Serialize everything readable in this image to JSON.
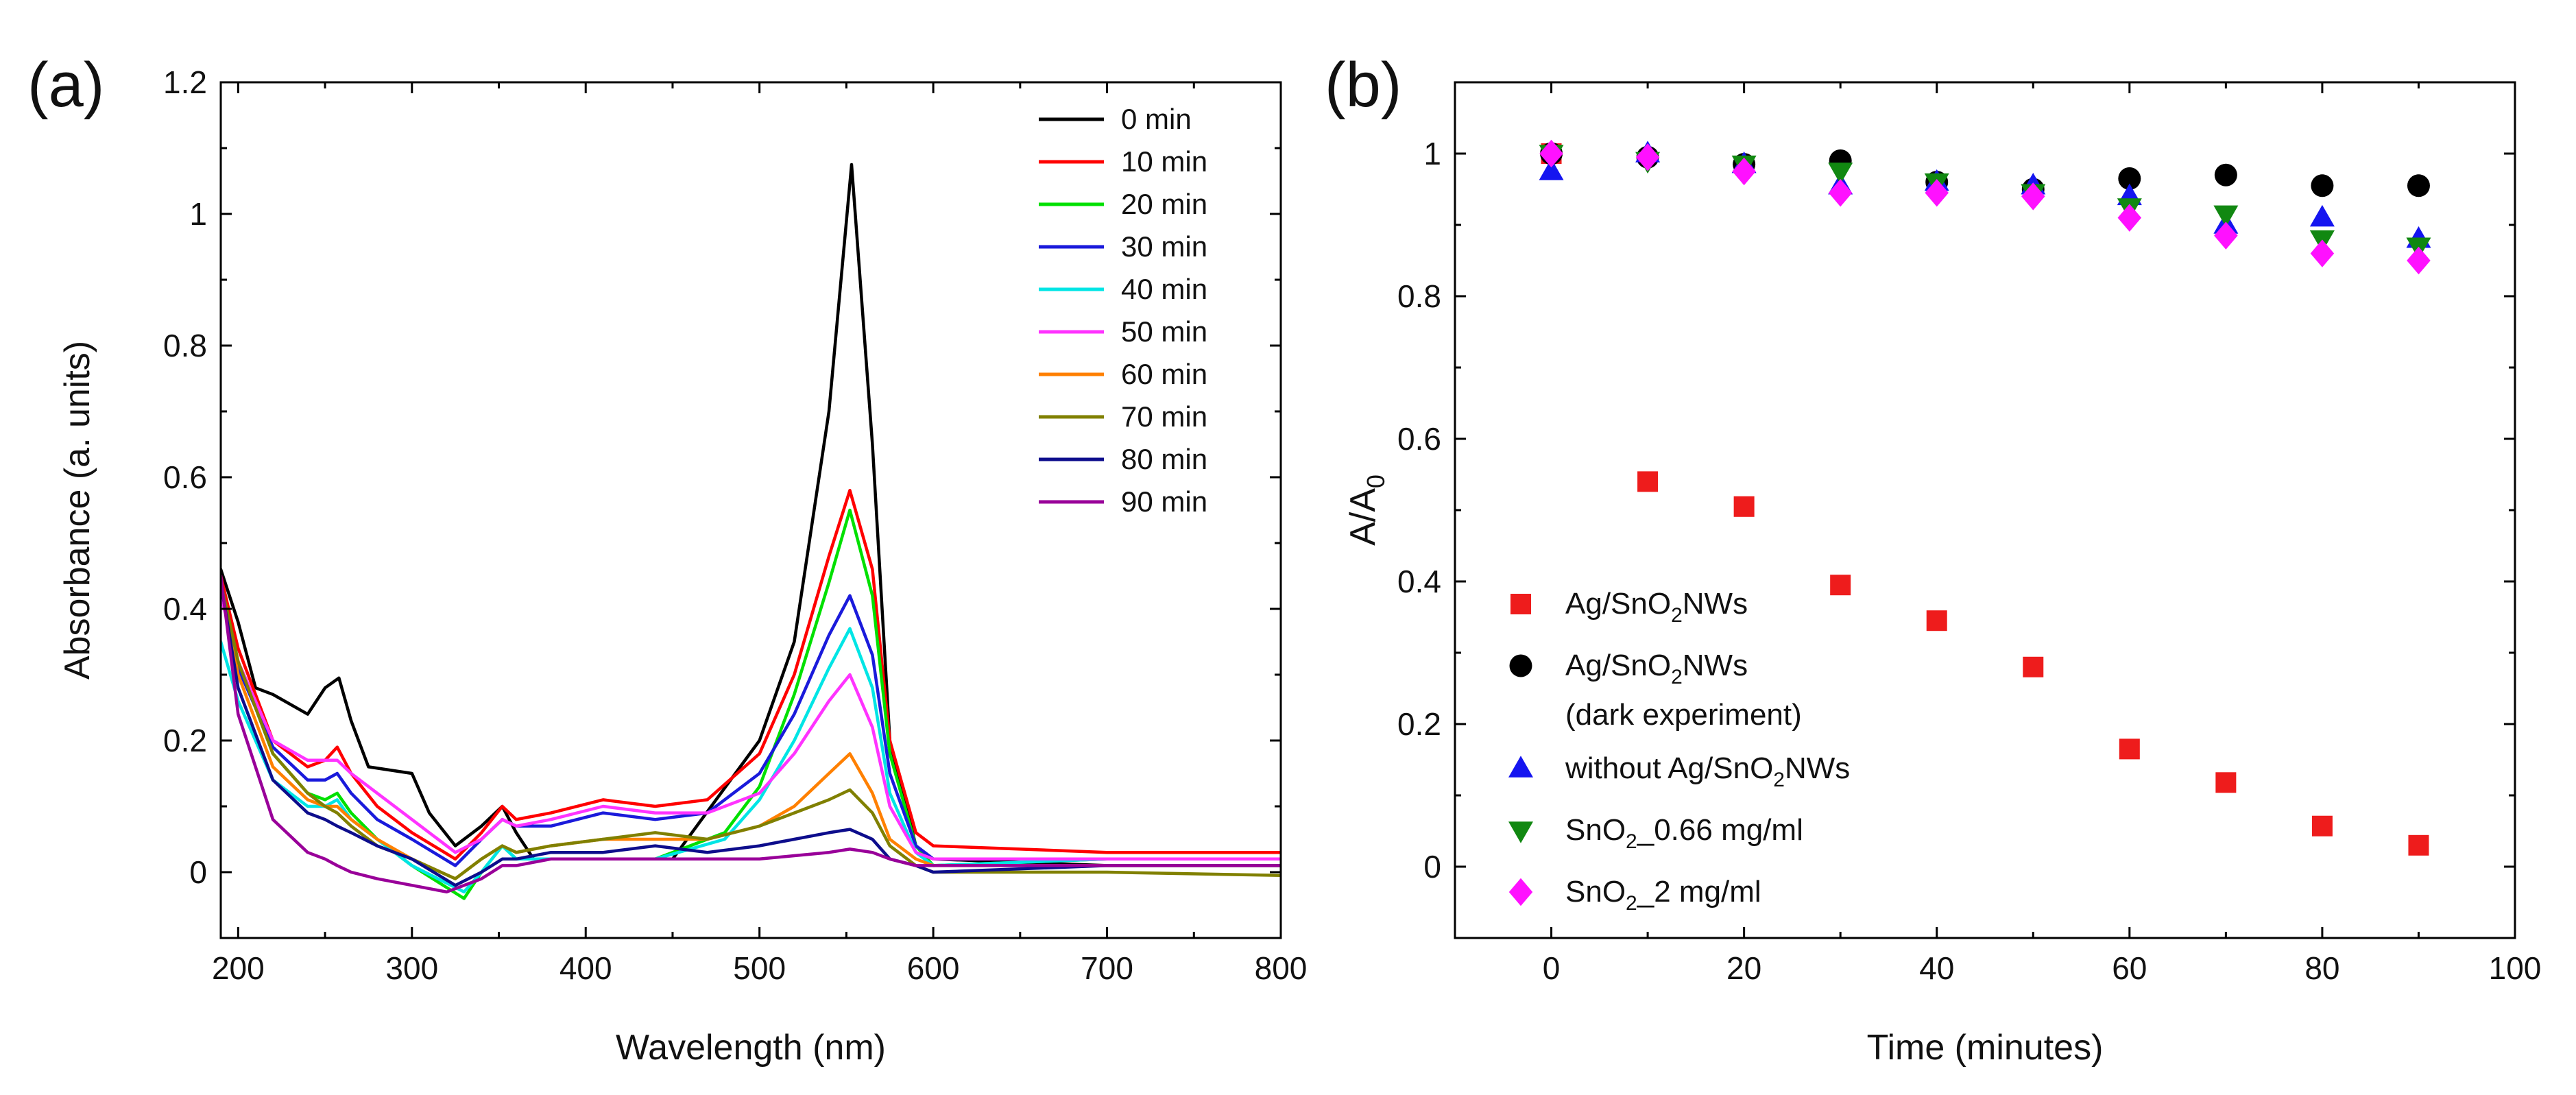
{
  "figure": {
    "background": "#ffffff",
    "axis_color": "#000000"
  },
  "chart_data": [
    {
      "panel_label": "(a)",
      "type": "line",
      "title": "",
      "xlabel": "Wavelength (nm)",
      "ylabel": "Absorbance (a. units)",
      "xlim": [
        190,
        800
      ],
      "ylim": [
        -0.1,
        1.2
      ],
      "xticks": [
        200,
        300,
        400,
        500,
        600,
        700,
        800
      ],
      "yticks": [
        0,
        0.2,
        0.4,
        0.6,
        0.8,
        1,
        1.2
      ],
      "ytick_labels": [
        "0",
        "0.2",
        "0.4",
        "0.6",
        "0.8",
        "1",
        "1.2"
      ],
      "legend_position": "top-right",
      "series": [
        {
          "name": "0 min",
          "color": "#000000",
          "x": [
            190,
            200,
            210,
            220,
            240,
            250,
            258,
            265,
            275,
            300,
            310,
            325,
            340,
            352,
            360,
            370,
            400,
            450,
            500,
            520,
            540,
            553,
            565,
            575,
            590,
            600,
            700,
            800
          ],
          "y": [
            0.46,
            0.38,
            0.28,
            0.27,
            0.24,
            0.28,
            0.295,
            0.23,
            0.16,
            0.15,
            0.09,
            0.04,
            0.07,
            0.1,
            0.06,
            0.02,
            0.02,
            0.02,
            0.2,
            0.35,
            0.7,
            1.075,
            0.65,
            0.2,
            0.04,
            0.02,
            0.01,
            0.01
          ]
        },
        {
          "name": "10 min",
          "color": "#ff0000",
          "x": [
            190,
            200,
            220,
            240,
            250,
            257,
            265,
            280,
            300,
            325,
            340,
            352,
            360,
            380,
            410,
            440,
            470,
            500,
            520,
            540,
            552,
            565,
            575,
            590,
            600,
            700,
            800
          ],
          "y": [
            0.45,
            0.34,
            0.2,
            0.16,
            0.17,
            0.19,
            0.15,
            0.1,
            0.06,
            0.02,
            0.06,
            0.1,
            0.08,
            0.09,
            0.11,
            0.1,
            0.11,
            0.18,
            0.3,
            0.48,
            0.58,
            0.46,
            0.2,
            0.06,
            0.04,
            0.03,
            0.03
          ]
        },
        {
          "name": "20 min",
          "color": "#00e000",
          "x": [
            190,
            200,
            220,
            240,
            250,
            257,
            265,
            280,
            300,
            330,
            340,
            352,
            360,
            380,
            410,
            440,
            480,
            500,
            520,
            540,
            552,
            565,
            575,
            590,
            600,
            700,
            800
          ],
          "y": [
            0.44,
            0.32,
            0.18,
            0.12,
            0.11,
            0.12,
            0.09,
            0.05,
            0.01,
            -0.04,
            0.0,
            0.04,
            0.02,
            0.02,
            0.02,
            0.02,
            0.06,
            0.13,
            0.27,
            0.44,
            0.55,
            0.42,
            0.18,
            0.04,
            0.01,
            0.02,
            0.02
          ]
        },
        {
          "name": "30 min",
          "color": "#1a1adb",
          "x": [
            190,
            200,
            220,
            240,
            250,
            257,
            265,
            280,
            300,
            325,
            340,
            352,
            360,
            380,
            410,
            440,
            470,
            500,
            520,
            540,
            552,
            565,
            575,
            590,
            600,
            700,
            800
          ],
          "y": [
            0.44,
            0.31,
            0.19,
            0.14,
            0.14,
            0.15,
            0.12,
            0.08,
            0.05,
            0.01,
            0.05,
            0.08,
            0.07,
            0.07,
            0.09,
            0.08,
            0.09,
            0.15,
            0.24,
            0.36,
            0.42,
            0.33,
            0.15,
            0.04,
            0.02,
            0.02,
            0.02
          ]
        },
        {
          "name": "40 min",
          "color": "#00e5e5",
          "x": [
            190,
            200,
            220,
            240,
            250,
            257,
            265,
            280,
            300,
            330,
            340,
            352,
            360,
            380,
            410,
            440,
            480,
            500,
            520,
            540,
            552,
            565,
            575,
            590,
            600,
            700,
            800
          ],
          "y": [
            0.35,
            0.26,
            0.14,
            0.1,
            0.1,
            0.11,
            0.08,
            0.05,
            0.01,
            -0.03,
            0.0,
            0.04,
            0.02,
            0.02,
            0.02,
            0.02,
            0.05,
            0.11,
            0.2,
            0.31,
            0.37,
            0.28,
            0.12,
            0.03,
            0.01,
            0.02,
            0.02
          ]
        },
        {
          "name": "50 min",
          "color": "#ff33ff",
          "x": [
            190,
            200,
            220,
            240,
            250,
            257,
            265,
            280,
            300,
            325,
            340,
            352,
            360,
            380,
            410,
            440,
            470,
            500,
            520,
            540,
            552,
            565,
            575,
            590,
            600,
            700,
            800
          ],
          "y": [
            0.42,
            0.32,
            0.2,
            0.17,
            0.17,
            0.17,
            0.15,
            0.12,
            0.08,
            0.03,
            0.05,
            0.08,
            0.07,
            0.08,
            0.1,
            0.09,
            0.09,
            0.12,
            0.18,
            0.26,
            0.3,
            0.22,
            0.1,
            0.03,
            0.02,
            0.02,
            0.02
          ]
        },
        {
          "name": "60 min",
          "color": "#ff8000",
          "x": [
            190,
            200,
            220,
            240,
            250,
            257,
            265,
            280,
            300,
            325,
            340,
            352,
            360,
            380,
            410,
            440,
            470,
            500,
            520,
            540,
            552,
            565,
            575,
            590,
            600,
            700,
            800
          ],
          "y": [
            0.44,
            0.3,
            0.16,
            0.11,
            0.1,
            0.1,
            0.08,
            0.05,
            0.02,
            -0.01,
            0.02,
            0.04,
            0.03,
            0.04,
            0.05,
            0.05,
            0.05,
            0.07,
            0.1,
            0.15,
            0.18,
            0.12,
            0.05,
            0.02,
            0.01,
            0.01,
            0.01
          ]
        },
        {
          "name": "70 min",
          "color": "#808000",
          "x": [
            190,
            200,
            220,
            240,
            250,
            257,
            265,
            280,
            300,
            325,
            340,
            352,
            360,
            380,
            410,
            440,
            470,
            500,
            520,
            540,
            552,
            565,
            575,
            590,
            600,
            700,
            800
          ],
          "y": [
            0.44,
            0.32,
            0.18,
            0.12,
            0.1,
            0.09,
            0.07,
            0.04,
            0.02,
            -0.01,
            0.02,
            0.04,
            0.03,
            0.04,
            0.05,
            0.06,
            0.05,
            0.07,
            0.09,
            0.11,
            0.125,
            0.09,
            0.04,
            0.01,
            0.0,
            0.0,
            -0.005
          ]
        },
        {
          "name": "80 min",
          "color": "#0d0d8c",
          "x": [
            190,
            200,
            220,
            240,
            250,
            257,
            265,
            280,
            300,
            325,
            340,
            352,
            360,
            380,
            410,
            440,
            470,
            500,
            520,
            540,
            552,
            565,
            575,
            590,
            600,
            700,
            800
          ],
          "y": [
            0.44,
            0.28,
            0.14,
            0.09,
            0.08,
            0.07,
            0.06,
            0.04,
            0.02,
            -0.02,
            0.0,
            0.02,
            0.02,
            0.03,
            0.03,
            0.04,
            0.03,
            0.04,
            0.05,
            0.06,
            0.065,
            0.05,
            0.02,
            0.01,
            0.0,
            0.01,
            0.01
          ]
        },
        {
          "name": "90 min",
          "color": "#990099",
          "x": [
            190,
            200,
            220,
            240,
            250,
            257,
            265,
            280,
            300,
            320,
            340,
            352,
            360,
            380,
            410,
            440,
            470,
            500,
            520,
            540,
            552,
            565,
            575,
            590,
            600,
            700,
            800
          ],
          "y": [
            0.45,
            0.24,
            0.08,
            0.03,
            0.02,
            0.01,
            0.0,
            -0.01,
            -0.02,
            -0.03,
            -0.01,
            0.01,
            0.01,
            0.02,
            0.02,
            0.02,
            0.02,
            0.02,
            0.025,
            0.03,
            0.035,
            0.03,
            0.02,
            0.01,
            0.01,
            0.01,
            0.01
          ]
        }
      ]
    },
    {
      "panel_label": "(b)",
      "type": "scatter",
      "title": "",
      "xlabel": "Time (minutes)",
      "ylabel": "A/A0",
      "ylabel_main": "A/A",
      "ylabel_sub": "0",
      "xlim": [
        -10,
        100
      ],
      "ylim": [
        -0.1,
        1.1
      ],
      "xticks": [
        0,
        20,
        40,
        60,
        80,
        100
      ],
      "yticks": [
        0,
        0.2,
        0.4,
        0.6,
        0.8,
        1
      ],
      "ytick_labels": [
        "0",
        "0.2",
        "0.4",
        "0.6",
        "0.8",
        "1"
      ],
      "legend_position": "bottom-left",
      "x": [
        0,
        10,
        20,
        30,
        40,
        50,
        60,
        70,
        80,
        90
      ],
      "series": [
        {
          "name": "Ag/SnO2NWs",
          "label_parts": [
            "Ag/SnO",
            "2",
            "NWs"
          ],
          "marker": "square",
          "color": "#ee1c1c",
          "values": [
            1.0,
            0.54,
            0.505,
            0.395,
            0.345,
            0.28,
            0.165,
            0.118,
            0.057,
            0.03
          ]
        },
        {
          "name": "Ag/SnO2NWs (dark experiment)",
          "label_parts": [
            "Ag/SnO",
            "2",
            "NWs"
          ],
          "label_line2": "(dark experiment)",
          "marker": "circle",
          "color": "#000000",
          "values": [
            1.0,
            0.995,
            0.985,
            0.99,
            0.96,
            0.95,
            0.965,
            0.97,
            0.955,
            0.955
          ]
        },
        {
          "name": "without Ag/SnO2NWs",
          "label_parts": [
            "without Ag/SnO",
            "2",
            "NWs"
          ],
          "marker": "triangle-up",
          "color": "#1515f0",
          "values": [
            0.975,
            1.0,
            0.985,
            0.955,
            0.96,
            0.955,
            0.94,
            0.9,
            0.91,
            0.88
          ]
        },
        {
          "name": "SnO2_0.66 mg/ml",
          "label_parts": [
            "SnO",
            "2",
            "_0.66 mg/ml"
          ],
          "marker": "triangle-down",
          "color": "#118811",
          "values": [
            1.0,
            0.99,
            0.985,
            0.975,
            0.96,
            0.945,
            0.925,
            0.915,
            0.88,
            0.87
          ]
        },
        {
          "name": "SnO2_2 mg/ml",
          "label_parts": [
            "SnO",
            "2",
            "_2 mg/ml"
          ],
          "marker": "diamond",
          "color": "#ff11ff",
          "values": [
            1.0,
            0.995,
            0.975,
            0.945,
            0.945,
            0.94,
            0.91,
            0.885,
            0.86,
            0.85
          ]
        }
      ]
    }
  ]
}
